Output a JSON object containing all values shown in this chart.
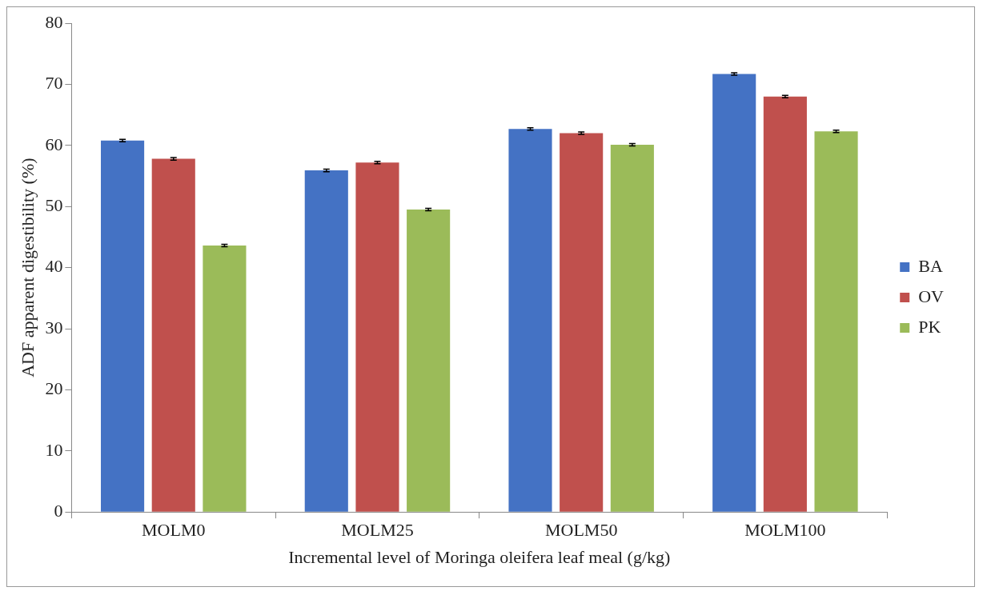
{
  "chart_data": {
    "type": "bar",
    "xlabel": "Incremental level of Moringa oleifera leaf meal (g/kg)",
    "ylabel": "ADF apparent digestibility (%)",
    "categories": [
      "MOLM0",
      "MOLM25",
      "MOLM50",
      "MOLM100"
    ],
    "series": [
      {
        "name": "BA",
        "color": "#4472c4",
        "values": [
          60.8,
          55.9,
          62.7,
          71.7
        ],
        "errors": [
          0.2,
          0.2,
          0.2,
          0.2
        ]
      },
      {
        "name": "OV",
        "color": "#c0504d",
        "values": [
          57.8,
          57.2,
          62.0,
          68.0
        ],
        "errors": [
          0.2,
          0.2,
          0.2,
          0.2
        ]
      },
      {
        "name": "PK",
        "color": "#9bbb59",
        "values": [
          43.6,
          49.5,
          60.1,
          62.3
        ],
        "errors": [
          0.2,
          0.2,
          0.2,
          0.2
        ]
      }
    ],
    "ylim": [
      0,
      80
    ],
    "yticks": [
      0,
      10,
      20,
      30,
      40,
      50,
      60,
      70,
      80
    ],
    "grid": false,
    "legend": "right"
  }
}
